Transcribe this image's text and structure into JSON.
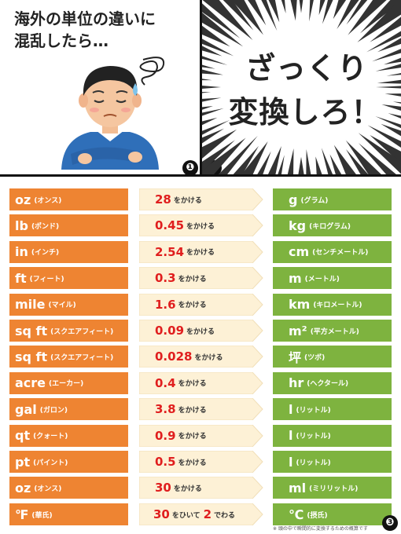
{
  "panel1": {
    "title": "海外の単位の違いに\n混乱したら…",
    "number": "❶"
  },
  "panel2": {
    "line1": "ざっくり",
    "line2": "変換しろ！",
    "number": "❷"
  },
  "panel3": {
    "number": "❸"
  },
  "colors": {
    "source": "#ee8432",
    "factor": "#fdf1d6",
    "target": "#7eb33f",
    "factor_value": "#e01e1e"
  },
  "rows": [
    {
      "src_unit": "oz",
      "src_name": "(オンス)",
      "factor": "28",
      "suffix": "をかける",
      "dst_unit": "g",
      "dst_name": "(グラム)"
    },
    {
      "src_unit": "lb",
      "src_name": "(ポンド)",
      "factor": "0.45",
      "suffix": "をかける",
      "dst_unit": "kg",
      "dst_name": "(キログラム)"
    },
    {
      "src_unit": "in",
      "src_name": "(インチ)",
      "factor": "2.54",
      "suffix": "をかける",
      "dst_unit": "cm",
      "dst_name": "(センチメートル)"
    },
    {
      "src_unit": "ft",
      "src_name": "(フィート)",
      "factor": "0.3",
      "suffix": "をかける",
      "dst_unit": "m",
      "dst_name": "(メートル)"
    },
    {
      "src_unit": "mile",
      "src_name": "(マイル)",
      "factor": "1.6",
      "suffix": "をかける",
      "dst_unit": "km",
      "dst_name": "(キロメートル)"
    },
    {
      "src_unit": "sq ft",
      "src_name": "(スクエアフィート)",
      "factor": "0.09",
      "suffix": "をかける",
      "dst_unit": "m²",
      "dst_name": "(平方メートル)"
    },
    {
      "src_unit": "sq ft",
      "src_name": "(スクエアフィート)",
      "factor": "0.028",
      "suffix": "をかける",
      "dst_unit": "坪",
      "dst_name": "(ツボ)"
    },
    {
      "src_unit": "acre",
      "src_name": "(エーカー)",
      "factor": "0.4",
      "suffix": "をかける",
      "dst_unit": "hr",
      "dst_name": "(ヘクタール)"
    },
    {
      "src_unit": "gal",
      "src_name": "(ガロン)",
      "factor": "3.8",
      "suffix": "をかける",
      "dst_unit": "l",
      "dst_name": "(リットル)"
    },
    {
      "src_unit": "qt",
      "src_name": "(クォート)",
      "factor": "0.9",
      "suffix": "をかける",
      "dst_unit": "l",
      "dst_name": "(リットル)"
    },
    {
      "src_unit": "pt",
      "src_name": "(パイント)",
      "factor": "0.5",
      "suffix": "をかける",
      "dst_unit": "l",
      "dst_name": "(リットル)"
    },
    {
      "src_unit": "oz",
      "src_name": "(オンス)",
      "factor": "30",
      "suffix": "をかける",
      "dst_unit": "ml",
      "dst_name": "(ミリリットル)"
    }
  ],
  "last_row": {
    "src_unit": "℉",
    "src_name": "(華氏)",
    "factor": "30",
    "mid": "をひいて",
    "factor2": "2",
    "suffix": "でわる",
    "dst_unit": "℃",
    "dst_name": "(摂氏)"
  },
  "footnote": "※ 頭の中で瞬間的に変換するための概算です"
}
